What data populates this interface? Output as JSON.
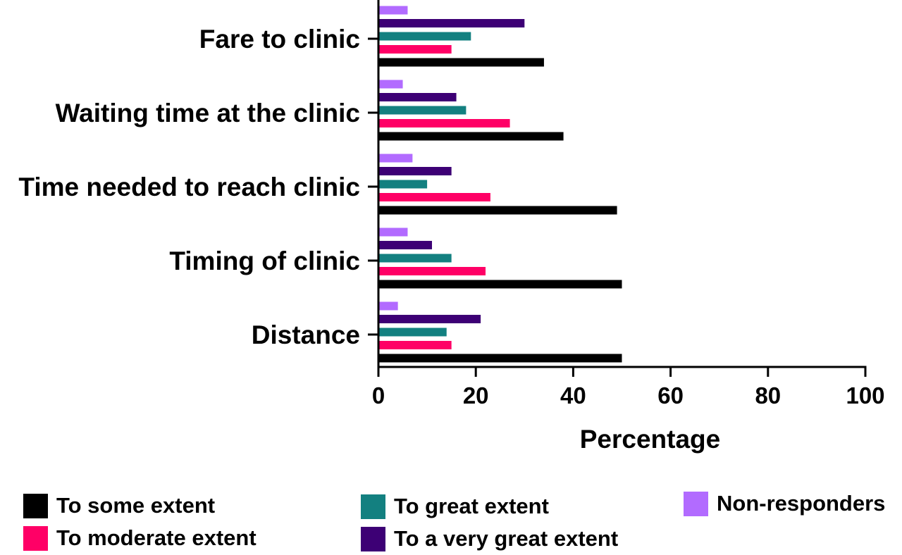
{
  "chart_data": {
    "type": "bar",
    "orientation": "horizontal",
    "xlabel": "Percentage",
    "ylabel": "",
    "xlim": [
      0,
      100
    ],
    "xticks": [
      0,
      20,
      40,
      60,
      80,
      100
    ],
    "categories": [
      "Fare to clinic",
      "Waiting time at the clinic",
      "Time needed to reach clinic",
      "Timing of clinic",
      "Distance"
    ],
    "series": [
      {
        "name": "To some extent",
        "color": "#000000",
        "values": [
          34,
          38,
          49,
          50,
          50
        ]
      },
      {
        "name": "To moderate extent",
        "color": "#ff0066",
        "values": [
          15,
          27,
          23,
          22,
          15
        ]
      },
      {
        "name": "To great extent",
        "color": "#138080",
        "values": [
          19,
          18,
          10,
          15,
          14
        ]
      },
      {
        "name": "To a very great extent",
        "color": "#3d0075",
        "values": [
          30,
          16,
          15,
          11,
          21
        ]
      },
      {
        "name": "Non-responders",
        "color": "#b26bff",
        "values": [
          6,
          5,
          7,
          6,
          4
        ]
      }
    ],
    "grid": false,
    "legend_position": "bottom"
  }
}
